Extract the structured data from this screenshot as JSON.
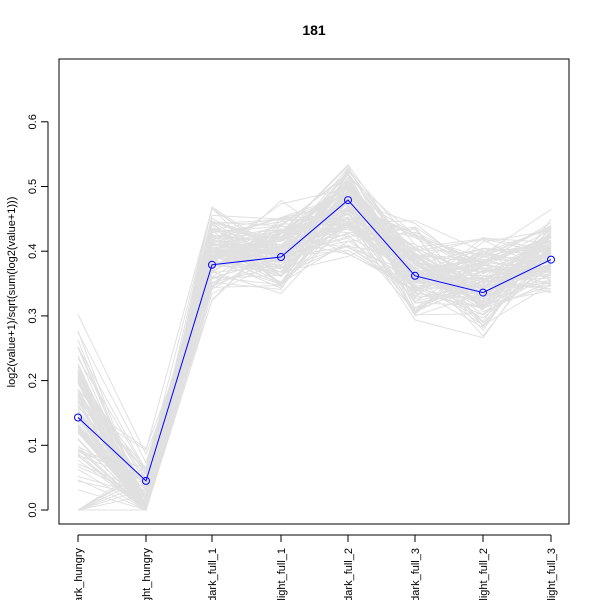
{
  "chart_data": {
    "type": "line",
    "title": "181",
    "xlabel": "",
    "ylabel": "log2(value+1)/sqrt(sum(log2(value+1)))",
    "categories": [
      "dark_hungry",
      "light_hungry",
      "dark_full_1",
      "light_full_1",
      "dark_full_2",
      "dark_full_3",
      "light_full_2",
      "light_full_3"
    ],
    "ylim": [
      0.0,
      0.6
    ],
    "yticks": [
      "0.0",
      "0.1",
      "0.2",
      "0.3",
      "0.4",
      "0.5",
      "0.6"
    ],
    "grid": false,
    "series": [
      {
        "values": [
          0.143,
          0.045,
          0.379,
          0.391,
          0.479,
          0.362,
          0.336,
          0.387
        ],
        "color": "#0000ff",
        "markers": "circle"
      }
    ],
    "background_series_count": 120,
    "background_color": "#e0e0e0"
  }
}
